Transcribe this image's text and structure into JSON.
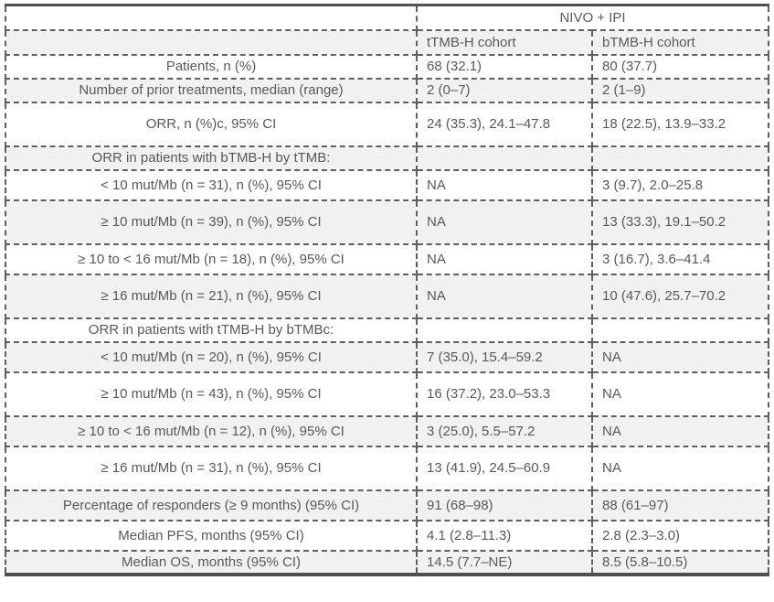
{
  "table": {
    "group_header": "NIVO + IPI",
    "col_headers": {
      "ttmb": "tTMB-H cohort",
      "btmb": "bTMB-H cohort"
    },
    "rows": [
      {
        "label": "Patients, n (%)",
        "ttmb": "68 (32.1)",
        "btmb": "80 (37.7)"
      },
      {
        "label": "Number of prior treatments, median (range)",
        "ttmb": "2 (0–7)",
        "btmb": "2 (1–9)"
      },
      {
        "label": "ORR, n (%)c, 95% CI",
        "ttmb": "24 (35.3), 24.1–47.8",
        "btmb": "18 (22.5), 13.9–33.2"
      },
      {
        "label": "ORR in patients with bTMB-H by tTMB:",
        "ttmb": "",
        "btmb": ""
      },
      {
        "label": "< 10 mut/Mb (n = 31), n (%), 95% CI",
        "ttmb": "NA",
        "btmb": "3 (9.7), 2.0–25.8"
      },
      {
        "label": "≥ 10 mut/Mb (n = 39), n (%), 95% CI",
        "ttmb": "NA",
        "btmb": "13 (33.3), 19.1–50.2"
      },
      {
        "label": "≥ 10 to < 16 mut/Mb (n = 18), n (%), 95% CI",
        "ttmb": "NA",
        "btmb": "3 (16.7), 3.6–41.4"
      },
      {
        "label": "≥ 16 mut/Mb (n = 21), n (%), 95% CI",
        "ttmb": "NA",
        "btmb": "10 (47.6), 25.7–70.2"
      },
      {
        "label": "ORR in patients with tTMB-H by bTMBc:",
        "ttmb": "",
        "btmb": ""
      },
      {
        "label": "< 10 mut/Mb (n = 20), n (%), 95% CI",
        "ttmb": "7 (35.0), 15.4–59.2",
        "btmb": "NA"
      },
      {
        "label": "≥ 10 mut/Mb (n = 43), n (%), 95% CI",
        "ttmb": "16 (37.2), 23.0–53.3",
        "btmb": "NA"
      },
      {
        "label": "≥ 10 to < 16 mut/Mb (n = 12), n (%), 95% CI",
        "ttmb": "3 (25.0), 5.5–57.2",
        "btmb": "NA"
      },
      {
        "label": "≥ 16 mut/Mb (n = 31), n (%), 95% CI",
        "ttmb": "13 (41.9), 24.5–60.9",
        "btmb": "NA"
      },
      {
        "label": "Percentage of responders (≥ 9 months) (95% CI)",
        "ttmb": "91 (68–98)",
        "btmb": "88 (61–97)"
      },
      {
        "label": "Median PFS, months (95% CI)",
        "ttmb": "4.1 (2.8–11.3)",
        "btmb": "2.8 (2.3–3.0)"
      },
      {
        "label": "Median OS, months (95% CI)",
        "ttmb": "14.5 (7.7–NE)",
        "btmb": "8.5 (5.8–10.5)"
      }
    ],
    "colors": {
      "row_shade": "#f1f1f1",
      "border_solid": "#4f4f4f",
      "border_dashed": "#5f5f5f",
      "text": "#595959"
    }
  }
}
